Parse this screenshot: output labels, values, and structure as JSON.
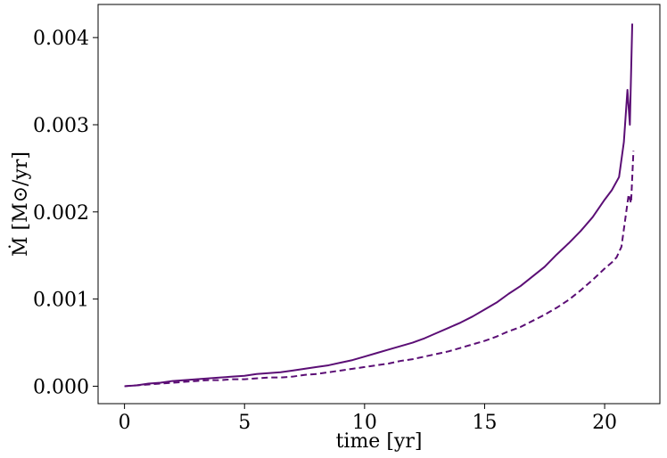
{
  "chart_data": {
    "type": "line",
    "xlabel": "time [yr]",
    "ylabel": "Ṁ [M⊙/yr]",
    "xlim": [
      -1.1,
      22.3
    ],
    "ylim": [
      -0.0002,
      0.00438
    ],
    "xticks": [
      0,
      5,
      10,
      15,
      20
    ],
    "xtick_labels": [
      "0",
      "5",
      "10",
      "15",
      "20"
    ],
    "yticks": [
      0.0,
      0.001,
      0.002,
      0.003,
      0.004
    ],
    "ytick_labels": [
      "0.000",
      "0.001",
      "0.002",
      "0.003",
      "0.004"
    ],
    "grid": false,
    "line_color": "#5b0e75",
    "series": [
      {
        "style": "solid",
        "x": [
          0,
          0.5,
          1,
          1.5,
          2,
          2.5,
          3,
          3.5,
          4,
          4.5,
          5,
          5.5,
          6,
          6.5,
          7,
          7.5,
          8,
          8.5,
          9,
          9.5,
          10,
          10.5,
          11,
          11.5,
          12,
          12.5,
          13,
          13.5,
          14,
          14.5,
          15,
          15.5,
          16,
          16.5,
          17,
          17.5,
          18,
          18.5,
          19,
          19.5,
          20,
          20.3,
          20.6,
          20.8,
          20.95,
          21.05,
          21.15
        ],
        "y": [
          0.0,
          1e-05,
          3e-05,
          4e-05,
          6e-05,
          7e-05,
          8e-05,
          9e-05,
          0.0001,
          0.00011,
          0.00012,
          0.00014,
          0.00015,
          0.00016,
          0.00018,
          0.0002,
          0.00022,
          0.00024,
          0.00027,
          0.0003,
          0.00034,
          0.00038,
          0.00042,
          0.00046,
          0.0005,
          0.00055,
          0.00061,
          0.00067,
          0.00073,
          0.0008,
          0.00088,
          0.00096,
          0.00106,
          0.00115,
          0.00126,
          0.00137,
          0.00151,
          0.00164,
          0.00178,
          0.00194,
          0.00214,
          0.00225,
          0.0024,
          0.0028,
          0.0034,
          0.003,
          0.00416
        ]
      },
      {
        "style": "dashed",
        "x": [
          0,
          0.5,
          1,
          1.5,
          2,
          2.5,
          3,
          3.5,
          4,
          4.5,
          5,
          5.5,
          6,
          6.5,
          7,
          7.5,
          8,
          8.5,
          9,
          9.5,
          10,
          10.5,
          11,
          11.5,
          12,
          12.5,
          13,
          13.5,
          14,
          14.5,
          15,
          15.5,
          16,
          16.5,
          17,
          17.5,
          18,
          18.5,
          19,
          19.5,
          20,
          20.3,
          20.5,
          20.7,
          20.85,
          21.0,
          21.1,
          21.2
        ],
        "y": [
          0.0,
          1e-05,
          2e-05,
          3e-05,
          4e-05,
          5e-05,
          6e-05,
          7e-05,
          7e-05,
          8e-05,
          8e-05,
          9e-05,
          0.0001,
          0.0001,
          0.00011,
          0.00013,
          0.00014,
          0.00016,
          0.00018,
          0.0002,
          0.00022,
          0.00024,
          0.00026,
          0.00029,
          0.00031,
          0.00034,
          0.00037,
          0.0004,
          0.00044,
          0.00048,
          0.00052,
          0.00057,
          0.00063,
          0.00068,
          0.00075,
          0.00082,
          0.0009,
          0.00099,
          0.0011,
          0.00122,
          0.00135,
          0.00142,
          0.00148,
          0.0016,
          0.0019,
          0.0022,
          0.0021,
          0.0027
        ]
      }
    ]
  }
}
